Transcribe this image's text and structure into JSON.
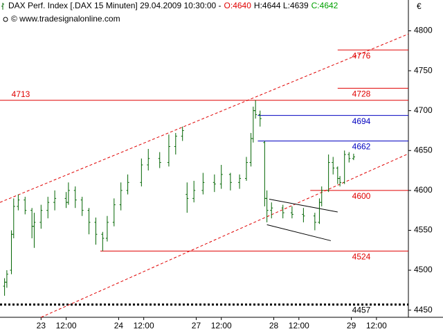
{
  "chart_data": {
    "type": "ohlc",
    "title": "DAX Perf. Index [.DAX  15 Minuten] 29.04.2009 10:30:00 -",
    "quote": [
      {
        "text": "O:4640",
        "color": "#e00000"
      },
      {
        "text": "H:4644 L:4639",
        "color": "#000000"
      },
      {
        "text": "C:4642",
        "color": "#00a000"
      }
    ],
    "source": "© www.tradesignalonline.com",
    "currency": "€",
    "color": "#006400",
    "x": [
      2,
      3,
      5,
      6,
      8,
      11,
      14,
      15,
      18,
      21,
      24,
      29,
      30,
      33,
      36,
      39,
      42,
      45,
      47,
      50,
      53,
      56,
      62,
      65,
      70,
      74,
      77,
      80,
      82,
      85,
      89,
      94,
      97,
      101,
      105,
      108,
      110,
      111,
      112,
      114,
      116,
      117,
      119,
      124,
      128,
      133,
      138,
      140,
      141,
      144,
      146,
      148,
      149,
      151,
      153,
      155
    ],
    "open": [
      4480,
      4485,
      4500,
      4545,
      4580,
      4588,
      4575,
      4555,
      4560,
      4575,
      4585,
      4590,
      4585,
      4600,
      4588,
      4575,
      4560,
      4545,
      4540,
      4560,
      4582,
      4600,
      4610,
      4632,
      4640,
      4635,
      4655,
      4668,
      4595,
      4590,
      4600,
      4610,
      4608,
      4620,
      4610,
      4615,
      4635,
      4665,
      4700,
      4695,
      4660,
      4590,
      4575,
      4578,
      4572,
      4570,
      4568,
      4560,
      4585,
      4600,
      4635,
      4628,
      4615,
      4610,
      4645,
      4640
    ],
    "high": [
      4490,
      4500,
      4550,
      4590,
      4595,
      4592,
      4578,
      4572,
      4582,
      4592,
      4600,
      4598,
      4610,
      4605,
      4592,
      4578,
      4566,
      4548,
      4568,
      4590,
      4610,
      4620,
      4640,
      4652,
      4648,
      4670,
      4672,
      4680,
      4610,
      4612,
      4622,
      4620,
      4632,
      4622,
      4620,
      4642,
      4672,
      4705,
      4713,
      4700,
      4662,
      4600,
      4585,
      4582,
      4580,
      4578,
      4572,
      4590,
      4605,
      4645,
      4642,
      4630,
      4618,
      4650,
      4648,
      4646
    ],
    "low": [
      4468,
      4478,
      4495,
      4540,
      4575,
      4570,
      4540,
      4528,
      4552,
      4565,
      4575,
      4578,
      4582,
      4578,
      4568,
      4545,
      4532,
      4524,
      4536,
      4555,
      4575,
      4595,
      4605,
      4625,
      4628,
      4630,
      4645,
      4662,
      4572,
      4585,
      4595,
      4598,
      4602,
      4600,
      4602,
      4612,
      4630,
      4660,
      4690,
      4680,
      4580,
      4560,
      4565,
      4565,
      4565,
      4560,
      4550,
      4558,
      4580,
      4598,
      4620,
      4608,
      4605,
      4608,
      4635,
      4638
    ],
    "close": [
      4485,
      4495,
      4545,
      4580,
      4588,
      4575,
      4555,
      4560,
      4575,
      4585,
      4590,
      4585,
      4600,
      4588,
      4575,
      4560,
      4545,
      4540,
      4560,
      4582,
      4600,
      4610,
      4632,
      4640,
      4635,
      4655,
      4668,
      4675,
      4590,
      4600,
      4610,
      4608,
      4620,
      4610,
      4615,
      4635,
      4665,
      4700,
      4695,
      4690,
      4590,
      4575,
      4578,
      4572,
      4570,
      4568,
      4560,
      4585,
      4600,
      4635,
      4628,
      4615,
      4610,
      4645,
      4640,
      4642
    ],
    "levels": [
      {
        "value": 4776,
        "color": "#e00000",
        "x_start": 148
      },
      {
        "value": 4728,
        "color": "#e00000",
        "x_start": 148
      },
      {
        "value": 4713,
        "color": "#e00000",
        "x_start": 0
      },
      {
        "value": 4694,
        "color": "#0000c0",
        "x_start": 113
      },
      {
        "value": 4662,
        "color": "#0000c0",
        "x_start": 113
      },
      {
        "value": 4600,
        "color": "#e00000",
        "x_start": 136
      },
      {
        "value": 4524,
        "color": "#e00000",
        "x_start": 44
      },
      {
        "value": 4457,
        "color": "#000000",
        "x_start": 0,
        "dotted": true
      }
    ],
    "trendlines": [
      {
        "x": [
          0,
          179
        ],
        "values": [
          4585,
          4796
        ],
        "color": "#e00000",
        "dashed": true
      },
      {
        "x": [
          18,
          179
        ],
        "values": [
          4441,
          4646
        ],
        "color": "#e00000",
        "dashed": true
      },
      {
        "x": [
          118,
          148
        ],
        "values": [
          4589,
          4573
        ],
        "color": "#000000"
      },
      {
        "x": [
          117,
          145
        ],
        "values": [
          4557,
          4537
        ],
        "color": "#000000"
      }
    ],
    "xlim": [
      0,
      179
    ],
    "xticks": [
      {
        "value": 18,
        "label": "23"
      },
      {
        "value": 29,
        "label": "12:00"
      },
      {
        "value": 52,
        "label": "24"
      },
      {
        "value": 63,
        "label": "12:00"
      },
      {
        "value": 86,
        "label": "27"
      },
      {
        "value": 97,
        "label": "12:00"
      },
      {
        "value": 120,
        "label": "28"
      },
      {
        "value": 131,
        "label": "12:00"
      },
      {
        "value": 154,
        "label": "29"
      },
      {
        "value": 165,
        "label": "12:00"
      }
    ],
    "ylim": [
      4441,
      4823
    ],
    "yticks": [
      4450,
      4500,
      4550,
      4600,
      4650,
      4700,
      4750,
      4800
    ]
  }
}
